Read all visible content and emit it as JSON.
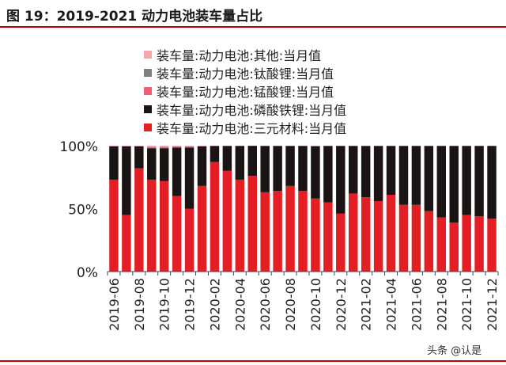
{
  "title": "图 19：2019-2021 动力电池装车量占比",
  "watermark": "头条 @认是",
  "chart_data": {
    "type": "bar",
    "stacked": true,
    "percent": true,
    "y_ticks": [
      "0%",
      "50%",
      "100%"
    ],
    "ylim": [
      0,
      100
    ],
    "legend_position": "top",
    "categories": [
      "2019-06",
      "2019-07",
      "2019-08",
      "2019-09",
      "2019-10",
      "2019-11",
      "2019-12",
      "2020-01",
      "2020-02",
      "2020-03",
      "2020-04",
      "2020-05",
      "2020-06",
      "2020-07",
      "2020-08",
      "2020-09",
      "2020-10",
      "2020-11",
      "2020-12",
      "2021-01",
      "2021-02",
      "2021-03",
      "2021-04",
      "2021-05",
      "2021-06",
      "2021-07",
      "2021-08",
      "2021-09",
      "2021-10",
      "2021-11",
      "2021-12"
    ],
    "tick_labels": [
      "2019-06",
      "",
      "2019-08",
      "",
      "2019-10",
      "",
      "2019-12",
      "",
      "2020-02",
      "",
      "2020-04",
      "",
      "2020-06",
      "",
      "2020-08",
      "",
      "2020-10",
      "",
      "2020-12",
      "",
      "2021-02",
      "",
      "2021-04",
      "",
      "2021-06",
      "",
      "2021-08",
      "",
      "2021-10",
      "",
      "2021-12"
    ],
    "series": [
      {
        "name": "装车量:动力电池:三元材料:当月值",
        "color": "#e31e24",
        "values": [
          73,
          45,
          82,
          73,
          72,
          60,
          50,
          68,
          87,
          80,
          73,
          76,
          63,
          64,
          68,
          64,
          58,
          55,
          46,
          62,
          59,
          56,
          61,
          53,
          53,
          48,
          43,
          39,
          45,
          44,
          42
        ]
      },
      {
        "name": "装车量:动力电池:磷酸铁锂:当月值",
        "color": "#1a1414",
        "values": [
          26.5,
          54.5,
          17.5,
          25,
          26,
          38.5,
          48.5,
          31.5,
          12.7,
          19.8,
          26.8,
          23.9,
          36.8,
          35.8,
          31.8,
          35.8,
          41.6,
          44.8,
          53.8,
          37.8,
          40.8,
          43.8,
          38.8,
          46.8,
          46.8,
          51.8,
          56.8,
          60.8,
          54.8,
          55.8,
          57.8
        ]
      },
      {
        "name": "装车量:动力电池:锰酸锂:当月值",
        "color": "#f06070",
        "values": [
          0.3,
          0.3,
          0.3,
          0.5,
          0.5,
          0.5,
          0.5,
          0.3,
          0.2,
          0.1,
          0.1,
          0.1,
          0.1,
          0.1,
          0.1,
          0.1,
          0.2,
          0.1,
          0.1,
          0.1,
          0.1,
          0.1,
          0.1,
          0.1,
          0.1,
          0.1,
          0.1,
          0.1,
          0.1,
          0.1,
          0.1
        ]
      },
      {
        "name": "装车量:动力电池:钛酸锂:当月值",
        "color": "#808080",
        "values": [
          0.1,
          0.1,
          0.1,
          0.5,
          0.5,
          0.5,
          0.5,
          0.1,
          0.05,
          0.05,
          0.05,
          0.0,
          0.05,
          0.05,
          0.05,
          0.05,
          0.1,
          0.05,
          0.05,
          0.05,
          0.05,
          0.05,
          0.05,
          0.05,
          0.05,
          0.05,
          0.05,
          0.05,
          0.05,
          0.05,
          0.05
        ]
      },
      {
        "name": "装车量:动力电池:其他:当月值",
        "color": "#f4a8ac",
        "values": [
          0.1,
          0.1,
          0.1,
          1.0,
          1.0,
          0.5,
          0.5,
          0.1,
          0.05,
          0.05,
          0.05,
          0.0,
          0.05,
          0.05,
          0.05,
          0.05,
          0.1,
          0.05,
          0.05,
          0.05,
          0.05,
          0.05,
          0.05,
          0.05,
          0.05,
          0.05,
          0.05,
          0.05,
          0.05,
          0.05,
          0.05
        ]
      }
    ],
    "legend_order": [
      4,
      3,
      2,
      1,
      0
    ]
  }
}
